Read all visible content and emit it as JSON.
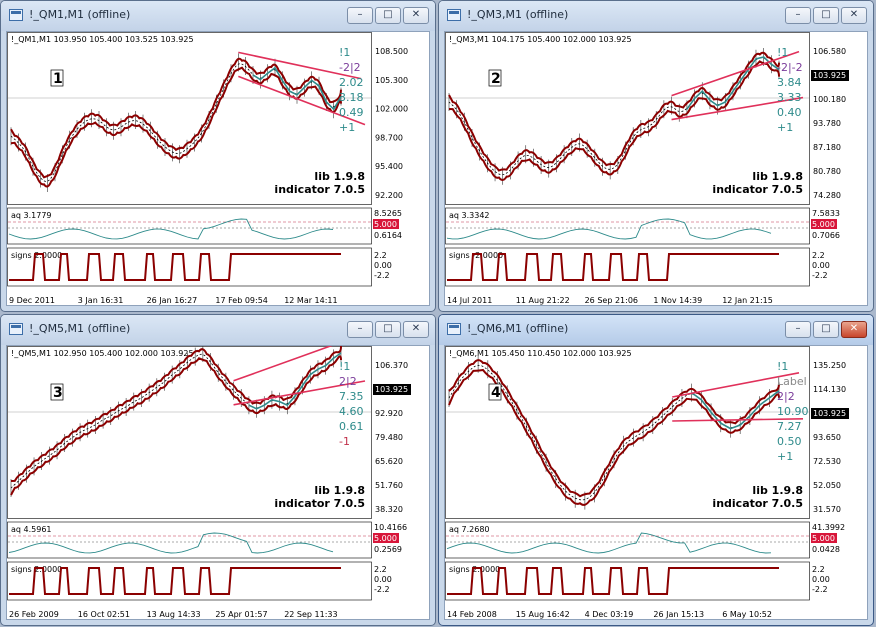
{
  "windows": [
    {
      "id": "qm1",
      "title": "!_QM1,M1 (offline)",
      "header": "!_QM1,M1  103.950 105.400 103.525 103.925",
      "label": "1",
      "prices": [
        "108.500",
        "105.300",
        "102.000",
        "98.700",
        "95.400",
        "92.200"
      ],
      "current_price": "103.925",
      "stats": [
        "!1",
        "-2|2",
        "2.02",
        "3.18",
        "0.49",
        "+1"
      ],
      "lib": "lib 1.9.8",
      "indicator": "indicator 7.0.5",
      "aq_label": "aq 3.1779",
      "aq_values": [
        "8.5265",
        "5.000",
        "0.6164"
      ],
      "signs_label": "signs 2.0000",
      "signs_values": [
        "2.2",
        "0.00",
        "-2.2"
      ],
      "time_labels": [
        "9 Dec 2011",
        "3 Jan 16:31",
        "26 Jan 16:27",
        "17 Feb 09:54",
        "12 Mar 14:11"
      ],
      "wave": [
        62,
        55,
        45,
        28,
        15,
        10,
        22,
        42,
        58,
        70,
        78,
        82,
        80,
        72,
        68,
        72,
        78,
        80,
        76,
        68,
        58,
        50,
        44,
        42,
        48,
        55,
        65,
        80,
        98,
        115,
        132,
        144,
        140,
        130,
        125,
        132,
        138,
        124,
        112,
        108,
        116,
        124,
        118,
        100,
        92,
        106
      ]
    },
    {
      "id": "qm3",
      "title": "!_QM3,M1 (offline)",
      "header": "!_QM3,M1  104.175 105.400 102.000 103.925",
      "label": "2",
      "prices": [
        "106.580",
        "103.925",
        "100.180",
        "93.780",
        "87.180",
        "80.780",
        "74.280"
      ],
      "current_price": "103.925",
      "stats": [
        "!1",
        "-2|-2",
        "3.84",
        "3.33",
        "0.40",
        "+1"
      ],
      "lib": "lib 1.9.8",
      "indicator": "indicator 7.0.5",
      "aq_label": "aq 3.3342",
      "aq_values": [
        "7.5833",
        "5.000",
        "0.7066"
      ],
      "signs_label": "signs -2.0000",
      "signs_values": [
        "2.2",
        "0.00",
        "-2.2"
      ],
      "time_labels": [
        "14 Jul 2011",
        "11 Aug 21:22",
        "26 Sep 21:06",
        "1 Nov 14:39",
        "12 Jan 21:15"
      ],
      "wave": [
        100,
        92,
        78,
        60,
        45,
        32,
        22,
        18,
        24,
        35,
        42,
        38,
        30,
        26,
        32,
        42,
        50,
        55,
        48,
        38,
        28,
        24,
        30,
        46,
        62,
        70,
        72,
        80,
        92,
        96,
        88,
        92,
        104,
        112,
        102,
        96,
        100,
        112,
        124,
        136,
        148,
        150,
        142,
        136
      ]
    },
    {
      "id": "qm5",
      "title": "!_QM5,M1 (offline)",
      "header": "!_QM5,M1  102.950 105.400 102.000 103.925",
      "label": "3",
      "prices": [
        "106.370",
        "103.925",
        "92.920",
        "79.480",
        "65.620",
        "51.760",
        "38.320"
      ],
      "current_price": "103.925",
      "stats": [
        "!1",
        "2|2",
        "7.35",
        "4.60",
        "0.61",
        "-1"
      ],
      "lib": "lib 1.9.8",
      "indicator": "indicator 7.0.5",
      "aq_label": "aq 4.5961",
      "aq_values": [
        "10.4166",
        "5.000",
        "0.2569"
      ],
      "signs_label": "signs 2.0000",
      "signs_values": [
        "2.2",
        "0.00",
        "-2.2"
      ],
      "time_labels": [
        "26 Feb 2009",
        "16 Oct 02:51",
        "13 Aug 14:33",
        "25 Apr 01:57",
        "22 Sep 11:33"
      ],
      "wave": [
        20,
        28,
        36,
        44,
        50,
        56,
        62,
        70,
        76,
        82,
        86,
        90,
        96,
        100,
        106,
        110,
        116,
        120,
        126,
        132,
        138,
        146,
        152,
        160,
        166,
        170,
        160,
        148,
        138,
        128,
        120,
        112,
        108,
        112,
        118,
        116,
        112,
        122,
        134,
        146,
        152,
        156,
        164,
        170
      ]
    },
    {
      "id": "qm6",
      "title": "!_QM6,M1 (offline)",
      "header": "!_QM6,M1  105.450 110.450 102.000 103.925",
      "label": "4",
      "prices": [
        "135.250",
        "114.130",
        "103.925",
        "93.650",
        "72.530",
        "52.050",
        "31.570"
      ],
      "current_price": "103.925",
      "stats": [
        "!1",
        "Label",
        "2|2",
        "10.90",
        "7.27",
        "0.50",
        "+1"
      ],
      "lib": "lib 1.9.8",
      "indicator": "indicator 7.0.5",
      "aq_label": "aq 7.2680",
      "aq_values": [
        "41.3992",
        "5.000",
        "0.0428"
      ],
      "signs_label": "signs 2.0000",
      "signs_values": [
        "2.2",
        "0.00",
        "-2.2"
      ],
      "time_labels": [
        "14 Feb 2008",
        "15 Aug 16:42",
        "4 Dec 03:19",
        "26 Jan 15:13",
        "6 May 10:52"
      ],
      "wave": [
        120,
        138,
        150,
        158,
        152,
        140,
        124,
        106,
        88,
        68,
        48,
        30,
        16,
        8,
        6,
        14,
        32,
        52,
        68,
        76,
        82,
        90,
        100,
        110,
        120,
        126,
        118,
        104,
        92,
        86,
        90,
        100,
        112,
        120,
        128
      ]
    }
  ]
}
